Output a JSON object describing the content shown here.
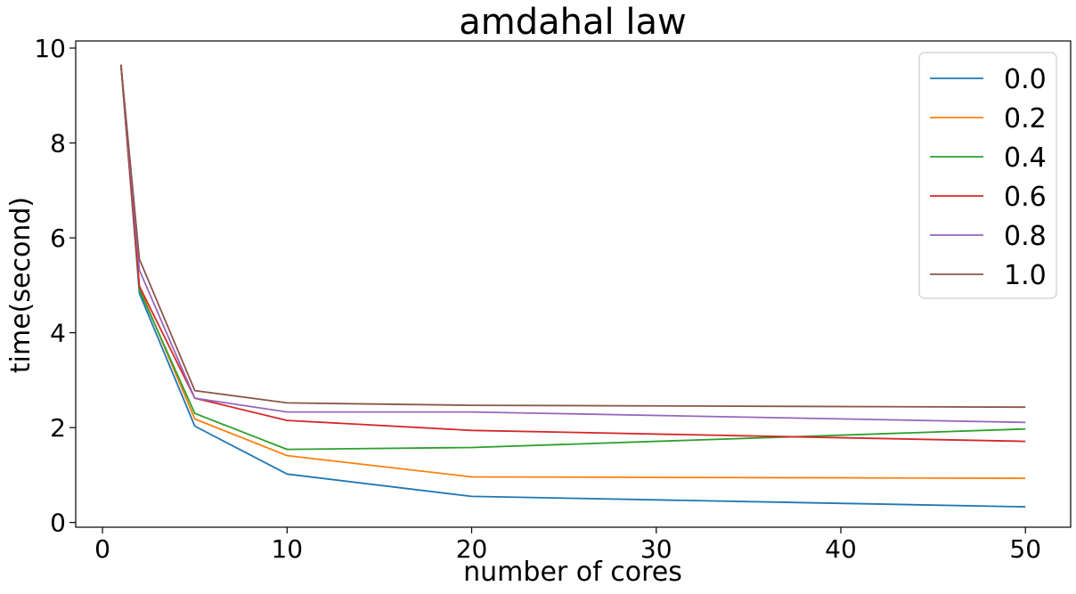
{
  "chart_data": {
    "type": "line",
    "title": "amdahal law",
    "xlabel": "number of cores",
    "ylabel": "time(second)",
    "x": [
      1,
      2,
      5,
      10,
      20,
      50
    ],
    "xlim": [
      -1.45,
      52.45
    ],
    "ylim": [
      -0.1,
      10.15
    ],
    "xticks": [
      0,
      10,
      20,
      30,
      40,
      50
    ],
    "yticks": [
      0,
      2,
      4,
      6,
      8,
      10
    ],
    "grid": false,
    "legend_position": "top-right",
    "series": [
      {
        "name": "0.0",
        "color": "#1f77b4",
        "values": [
          9.65,
          4.83,
          2.03,
          1.02,
          0.55,
          0.33
        ]
      },
      {
        "name": "0.2",
        "color": "#ff7f0e",
        "values": [
          9.65,
          4.95,
          2.18,
          1.41,
          0.96,
          0.93
        ]
      },
      {
        "name": "0.4",
        "color": "#2ca02c",
        "values": [
          9.65,
          4.9,
          2.3,
          1.54,
          1.58,
          1.97
        ]
      },
      {
        "name": "0.6",
        "color": "#d62728",
        "values": [
          9.65,
          4.98,
          2.62,
          2.15,
          1.94,
          1.71
        ]
      },
      {
        "name": "0.8",
        "color": "#9467bd",
        "values": [
          9.65,
          5.32,
          2.62,
          2.33,
          2.33,
          2.11
        ]
      },
      {
        "name": "1.0",
        "color": "#8c564b",
        "values": [
          9.65,
          5.55,
          2.78,
          2.52,
          2.47,
          2.43
        ]
      }
    ]
  }
}
